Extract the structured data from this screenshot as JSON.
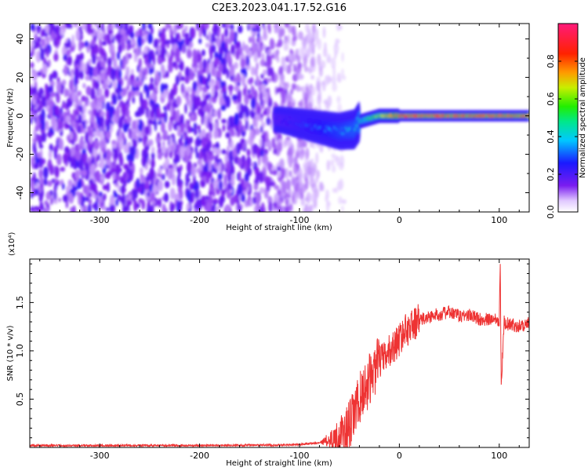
{
  "title": "C2E3.2023.041.17.52.G16",
  "chart_data": [
    {
      "type": "heatmap",
      "title": "C2E3.2023.041.17.52.G16",
      "xlabel": "Height of straight line (km)",
      "ylabel": "Frequency (Hz)",
      "xlim": [
        -370,
        130
      ],
      "ylim": [
        -50,
        48
      ],
      "xticks": [
        -300,
        -200,
        -100,
        0,
        100
      ],
      "xtick_labels": [
        "-300",
        "-200",
        "-100",
        "0",
        "100"
      ],
      "yticks": [
        -40,
        -20,
        0,
        20,
        40
      ],
      "ytick_labels": [
        "-40",
        "-20",
        "0",
        "20",
        "40"
      ],
      "colorbar": {
        "label": "Normalized spectral amplitude",
        "range": [
          0,
          1
        ],
        "ticks": [
          0,
          0.2,
          0.4,
          0.6,
          0.8
        ],
        "tick_labels": [
          "0.0",
          "0.2",
          "0.4",
          "0.6",
          "0.8"
        ]
      },
      "features": [
        {
          "name": "broadband noise",
          "x_range": [
            -370,
            -85
          ],
          "y_range": [
            -50,
            48
          ],
          "amplitude": 0.08
        },
        {
          "name": "signal track",
          "points": [
            [
              -120,
              -2
            ],
            [
              -100,
              -4
            ],
            [
              -80,
              -6
            ],
            [
              -60,
              -8
            ],
            [
              -45,
              -7
            ],
            [
              -40,
              -3
            ],
            [
              -20,
              0
            ],
            [
              0,
              0
            ],
            [
              50,
              0
            ],
            [
              100,
              0
            ],
            [
              130,
              0
            ]
          ],
          "amplitude_at_start": 0.25,
          "amplitude_at_end": 0.85
        }
      ]
    },
    {
      "type": "line",
      "xlabel": "Height of straight line (km)",
      "ylabel": "SNR (10 * v/v)",
      "scale_label": "(x10⁴)",
      "xlim": [
        -370,
        130
      ],
      "ylim": [
        0,
        1.95
      ],
      "xticks": [
        -300,
        -200,
        -100,
        0,
        100
      ],
      "xtick_labels": [
        "-300",
        "-200",
        "-100",
        "0",
        "100"
      ],
      "yticks": [
        0.5,
        1.0,
        1.5
      ],
      "ytick_labels": [
        "0.5",
        "1.0",
        "1.5"
      ],
      "series": [
        {
          "name": "SNR",
          "color": "#ee3333",
          "x": [
            -370,
            -300,
            -200,
            -120,
            -100,
            -80,
            -65,
            -55,
            -50,
            -45,
            -40,
            -35,
            -30,
            -25,
            -20,
            -15,
            -10,
            -5,
            0,
            5,
            10,
            15,
            20,
            25,
            30,
            40,
            50,
            60,
            70,
            80,
            90,
            95,
            100,
            101,
            102,
            105,
            110,
            120,
            130
          ],
          "values": [
            0.02,
            0.02,
            0.02,
            0.025,
            0.03,
            0.05,
            0.09,
            0.15,
            0.22,
            0.35,
            0.5,
            0.6,
            0.7,
            0.8,
            0.9,
            0.92,
            1.0,
            1.05,
            1.12,
            1.2,
            1.24,
            1.28,
            1.32,
            1.33,
            1.35,
            1.38,
            1.4,
            1.36,
            1.37,
            1.33,
            1.32,
            1.34,
            1.32,
            1.9,
            0.65,
            1.3,
            1.27,
            1.26,
            1.28
          ]
        }
      ]
    }
  ]
}
